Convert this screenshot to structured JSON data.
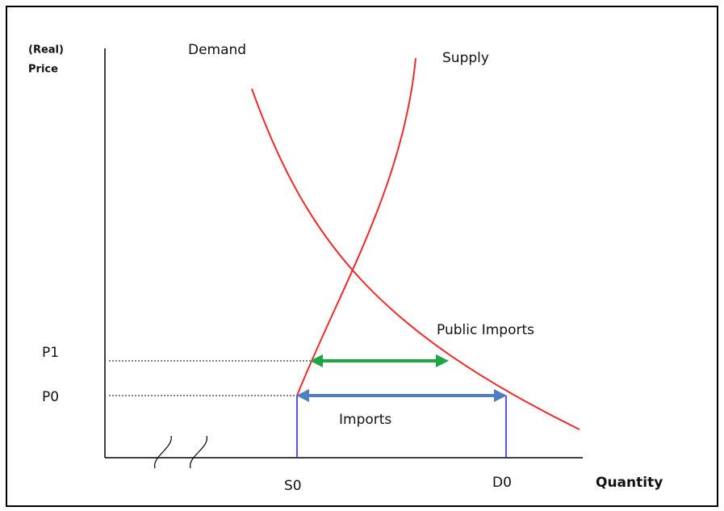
{
  "axes": {
    "y_label_line1": "(Real)",
    "y_label_line2": "Price",
    "x_label": "Quantity"
  },
  "curves": {
    "demand": "Demand",
    "supply": "Supply"
  },
  "prices": {
    "p1": "P1",
    "p0": "P0"
  },
  "quantities": {
    "s0": "S0",
    "d0": "D0"
  },
  "arrows": {
    "public_imports": "Public Imports",
    "imports": "Imports"
  }
}
